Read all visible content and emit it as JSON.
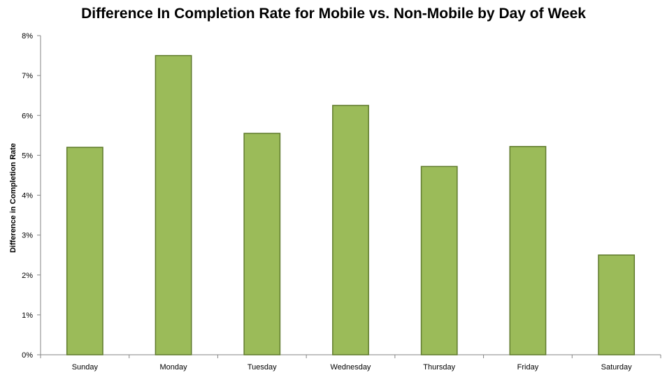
{
  "chart_data": {
    "type": "bar",
    "title": "Difference In Completion Rate for Mobile vs. Non-Mobile by Day of Week",
    "xlabel": "",
    "ylabel": "Difference in Completion Rate",
    "categories": [
      "Sunday",
      "Monday",
      "Tuesday",
      "Wednesday",
      "Thursday",
      "Friday",
      "Saturday"
    ],
    "values": [
      5.2,
      7.5,
      5.55,
      6.25,
      4.72,
      5.22,
      2.5
    ],
    "ylim": [
      0,
      8
    ],
    "yticks": [
      "0%",
      "1%",
      "2%",
      "3%",
      "4%",
      "5%",
      "6%",
      "7%",
      "8%"
    ],
    "grid": false,
    "bar_color": "#9bbb59",
    "bar_edge_color": "#5f7a2c"
  }
}
